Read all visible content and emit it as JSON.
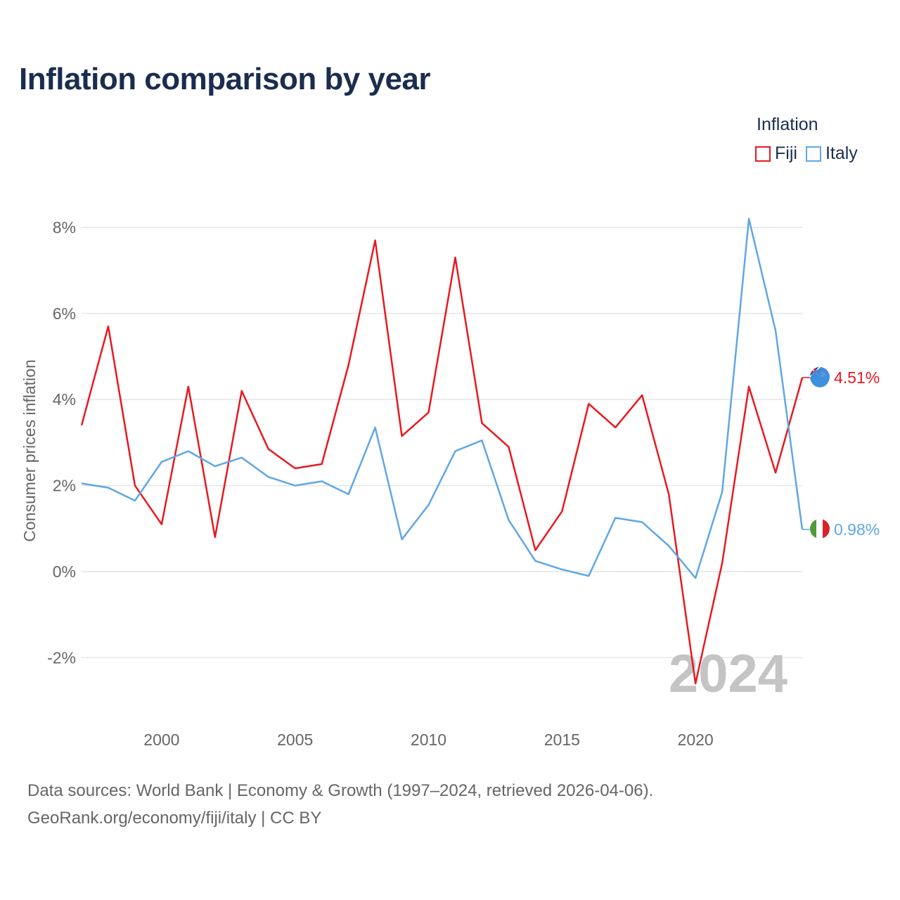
{
  "chart_data": {
    "type": "line",
    "title": "Inflation comparison by year",
    "ylabel": "Consumer prices inflation",
    "xlabel": "",
    "legend_title": "Inflation",
    "ylim": [
      -3,
      9
    ],
    "xlim": [
      1997,
      2024
    ],
    "yticks": [
      -2,
      0,
      2,
      4,
      6,
      8
    ],
    "ytick_labels": [
      "-2%",
      "0%",
      "2%",
      "4%",
      "6%",
      "8%"
    ],
    "xticks": [
      2000,
      2005,
      2010,
      2015,
      2020
    ],
    "xtick_labels": [
      "2000",
      "2005",
      "2010",
      "2015",
      "2020"
    ],
    "year_watermark": "2024",
    "x": [
      1997,
      1998,
      1999,
      2000,
      2001,
      2002,
      2003,
      2004,
      2005,
      2006,
      2007,
      2008,
      2009,
      2010,
      2011,
      2012,
      2013,
      2014,
      2015,
      2016,
      2017,
      2018,
      2019,
      2020,
      2021,
      2022,
      2023,
      2024
    ],
    "series": [
      {
        "name": "Fiji",
        "color": "#e8191f",
        "end_label": "4.51%",
        "values": [
          3.4,
          5.7,
          2.0,
          1.1,
          4.3,
          0.8,
          4.2,
          2.85,
          2.4,
          2.5,
          4.8,
          7.7,
          3.15,
          3.7,
          7.3,
          3.45,
          2.9,
          0.5,
          1.4,
          3.9,
          3.35,
          4.1,
          1.8,
          -2.6,
          0.2,
          4.3,
          2.3,
          4.51
        ]
      },
      {
        "name": "Italy",
        "color": "#5fa7e6",
        "end_label": "0.98%",
        "values": [
          2.05,
          1.95,
          1.65,
          2.55,
          2.8,
          2.45,
          2.65,
          2.2,
          2.0,
          2.1,
          1.8,
          3.35,
          0.75,
          1.55,
          2.8,
          3.05,
          1.2,
          0.25,
          0.05,
          -0.1,
          1.25,
          1.15,
          0.6,
          -0.15,
          1.85,
          8.2,
          5.6,
          0.98
        ]
      }
    ]
  },
  "footer": {
    "line1": "Data sources: World Bank | Economy & Growth (1997–2024, retrieved 2026-04-06).",
    "line2": "GeoRank.org/economy/fiji/italy | CC BY"
  }
}
